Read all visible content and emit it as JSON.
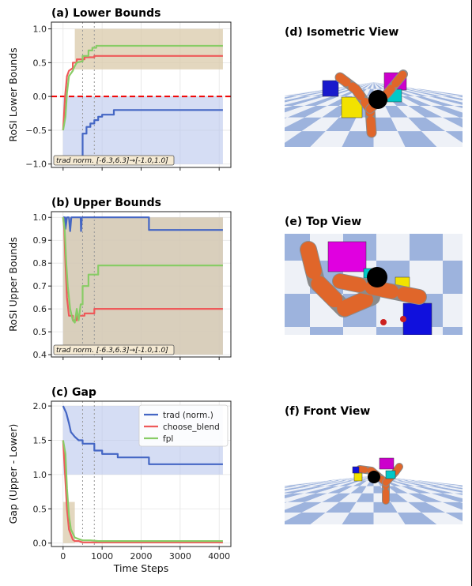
{
  "colors": {
    "trad": "#4466c4",
    "choose_blend": "#ee5a5a",
    "fpl": "#88cc66",
    "trad_band": "#b9c6ec",
    "tan_band": "#d9c9aa",
    "zero_line": "#ee0000",
    "grid": "#e4e4e4"
  },
  "chart_data": [
    {
      "type": "line",
      "title": "(a) Lower Bounds",
      "ylabel": "RoSI Lower Bounds",
      "xlim": [
        -300,
        4300
      ],
      "ylim": [
        -1.05,
        1.1
      ],
      "yticks": [
        -1.0,
        -0.5,
        0.0,
        0.5,
        1.0
      ],
      "ytick_labels": [
        "−1.0",
        "−0.5",
        "0.0",
        "0.5",
        "1.0"
      ],
      "xticks": [
        0,
        1000,
        2000,
        3000,
        4000
      ],
      "reference_line_y": 0.0,
      "vlines": [
        500,
        800
      ],
      "annotation": "trad norm. [-6.3,6.3]→[-1.0,1.0]",
      "bands": [
        {
          "color": "trad_band",
          "x0": 0,
          "x1": 4096,
          "y0": -1.0,
          "y1": 0.0
        },
        {
          "color": "tan_band",
          "x0": 300,
          "x1": 4096,
          "y0": 0.4,
          "y1": 1.0
        }
      ],
      "series": [
        {
          "key": "trad",
          "points": [
            [
              500,
              -1.0
            ],
            [
              500,
              -0.55
            ],
            [
              600,
              -0.55
            ],
            [
              600,
              -0.45
            ],
            [
              700,
              -0.45
            ],
            [
              700,
              -0.4
            ],
            [
              800,
              -0.4
            ],
            [
              800,
              -0.35
            ],
            [
              900,
              -0.35
            ],
            [
              900,
              -0.3
            ],
            [
              1000,
              -0.3
            ],
            [
              1000,
              -0.27
            ],
            [
              1300,
              -0.27
            ],
            [
              1300,
              -0.2
            ],
            [
              4096,
              -0.2
            ]
          ]
        },
        {
          "key": "choose_blend",
          "points": [
            [
              0,
              -0.5
            ],
            [
              50,
              0.0
            ],
            [
              100,
              0.3
            ],
            [
              150,
              0.38
            ],
            [
              250,
              0.42
            ],
            [
              250,
              0.5
            ],
            [
              350,
              0.5
            ],
            [
              350,
              0.55
            ],
            [
              550,
              0.55
            ],
            [
              550,
              0.58
            ],
            [
              800,
              0.58
            ],
            [
              800,
              0.6
            ],
            [
              4096,
              0.6
            ]
          ]
        },
        {
          "key": "fpl",
          "points": [
            [
              0,
              -0.5
            ],
            [
              60,
              -0.3
            ],
            [
              100,
              0.05
            ],
            [
              150,
              0.3
            ],
            [
              250,
              0.38
            ],
            [
              300,
              0.45
            ],
            [
              350,
              0.5
            ],
            [
              500,
              0.52
            ],
            [
              500,
              0.6
            ],
            [
              650,
              0.6
            ],
            [
              650,
              0.68
            ],
            [
              750,
              0.68
            ],
            [
              750,
              0.72
            ],
            [
              850,
              0.72
            ],
            [
              850,
              0.75
            ],
            [
              4096,
              0.75
            ]
          ]
        }
      ]
    },
    {
      "type": "line",
      "title": "(b) Upper Bounds",
      "ylabel": "RoSI Upper Bounds",
      "xlim": [
        -300,
        4300
      ],
      "ylim": [
        0.39,
        1.025
      ],
      "yticks": [
        0.4,
        0.5,
        0.6,
        0.7,
        0.8,
        0.9,
        1.0
      ],
      "ytick_labels": [
        "0.4",
        "0.5",
        "0.6",
        "0.7",
        "0.8",
        "0.9",
        "1.0"
      ],
      "xticks": [
        0,
        1000,
        2000,
        3000,
        4000
      ],
      "vlines": [
        500,
        800
      ],
      "annotation": "trad norm. [-6.3,6.3]→[-1.0,1.0]",
      "bands": [
        {
          "color": "trad_band",
          "x0": 0,
          "x1": 4096,
          "y0": 0.4,
          "y1": 1.0
        },
        {
          "color": "tan_band",
          "x0": 0,
          "x1": 4096,
          "y0": 0.4,
          "y1": 1.0
        }
      ],
      "series": [
        {
          "key": "trad",
          "points": [
            [
              0,
              1.0
            ],
            [
              50,
              1.0
            ],
            [
              60,
              0.95
            ],
            [
              100,
              1.0
            ],
            [
              150,
              1.0
            ],
            [
              180,
              0.94
            ],
            [
              210,
              1.0
            ],
            [
              450,
              1.0
            ],
            [
              460,
              0.94
            ],
            [
              480,
              1.0
            ],
            [
              2200,
              1.0
            ],
            [
              2200,
              0.945
            ],
            [
              4096,
              0.945
            ]
          ]
        },
        {
          "key": "choose_blend",
          "points": [
            [
              0,
              1.0
            ],
            [
              30,
              0.95
            ],
            [
              60,
              0.8
            ],
            [
              100,
              0.65
            ],
            [
              150,
              0.57
            ],
            [
              250,
              0.57
            ],
            [
              250,
              0.55
            ],
            [
              350,
              0.55
            ],
            [
              350,
              0.57
            ],
            [
              550,
              0.57
            ],
            [
              550,
              0.58
            ],
            [
              800,
              0.58
            ],
            [
              800,
              0.6
            ],
            [
              4096,
              0.6
            ]
          ]
        },
        {
          "key": "fpl",
          "points": [
            [
              0,
              1.0
            ],
            [
              40,
              0.95
            ],
            [
              80,
              0.8
            ],
            [
              120,
              0.7
            ],
            [
              180,
              0.6
            ],
            [
              250,
              0.55
            ],
            [
              300,
              0.54
            ],
            [
              350,
              0.6
            ],
            [
              400,
              0.55
            ],
            [
              450,
              0.62
            ],
            [
              500,
              0.62
            ],
            [
              500,
              0.7
            ],
            [
              650,
              0.7
            ],
            [
              650,
              0.75
            ],
            [
              900,
              0.75
            ],
            [
              900,
              0.79
            ],
            [
              4096,
              0.79
            ]
          ]
        }
      ]
    },
    {
      "type": "line",
      "title": "(c) Gap",
      "ylabel": "Gap (Upper - Lower)",
      "xlabel": "Time Steps",
      "xlim": [
        -300,
        4300
      ],
      "ylim": [
        -0.05,
        2.07
      ],
      "yticks": [
        0.0,
        0.5,
        1.0,
        1.5,
        2.0
      ],
      "ytick_labels": [
        "0.0",
        "0.5",
        "1.0",
        "1.5",
        "2.0"
      ],
      "xticks": [
        0,
        1000,
        2000,
        3000,
        4000
      ],
      "xtick_labels": [
        "0",
        "1000",
        "2000",
        "3000",
        "4000"
      ],
      "vlines": [
        500,
        800
      ],
      "bands": [
        {
          "color": "trad_band",
          "x0": 0,
          "x1": 4096,
          "y0": 1.0,
          "y1": 2.0
        },
        {
          "color": "tan_band",
          "x0": 0,
          "x1": 300,
          "y0": 0.0,
          "y1": 0.6
        }
      ],
      "legend": {
        "placement": "top-right",
        "entries": [
          {
            "key": "trad",
            "label": "trad (norm.)"
          },
          {
            "key": "choose_blend",
            "label": "choose_blend"
          },
          {
            "key": "fpl",
            "label": "fpl"
          }
        ]
      },
      "series": [
        {
          "key": "trad",
          "points": [
            [
              0,
              2.0
            ],
            [
              80,
              1.9
            ],
            [
              150,
              1.75
            ],
            [
              200,
              1.62
            ],
            [
              300,
              1.55
            ],
            [
              400,
              1.5
            ],
            [
              500,
              1.5
            ],
            [
              500,
              1.45
            ],
            [
              800,
              1.45
            ],
            [
              800,
              1.35
            ],
            [
              1000,
              1.35
            ],
            [
              1000,
              1.3
            ],
            [
              1400,
              1.3
            ],
            [
              1400,
              1.25
            ],
            [
              2200,
              1.25
            ],
            [
              2200,
              1.15
            ],
            [
              4096,
              1.15
            ]
          ]
        },
        {
          "key": "choose_blend",
          "points": [
            [
              0,
              1.5
            ],
            [
              50,
              1.0
            ],
            [
              100,
              0.5
            ],
            [
              150,
              0.2
            ],
            [
              250,
              0.05
            ],
            [
              300,
              0.03
            ],
            [
              400,
              0.03
            ],
            [
              500,
              0.01
            ],
            [
              4096,
              0.01
            ]
          ]
        },
        {
          "key": "fpl",
          "points": [
            [
              0,
              1.5
            ],
            [
              60,
              1.3
            ],
            [
              100,
              0.8
            ],
            [
              150,
              0.4
            ],
            [
              200,
              0.2
            ],
            [
              300,
              0.08
            ],
            [
              400,
              0.06
            ],
            [
              500,
              0.04
            ],
            [
              700,
              0.04
            ],
            [
              900,
              0.03
            ],
            [
              4096,
              0.03
            ]
          ]
        }
      ]
    }
  ],
  "views": [
    {
      "title": "(d) Isometric View",
      "variant": "iso"
    },
    {
      "title": "(e) Top View",
      "variant": "top"
    },
    {
      "title": "(f) Front View",
      "variant": "front"
    }
  ]
}
